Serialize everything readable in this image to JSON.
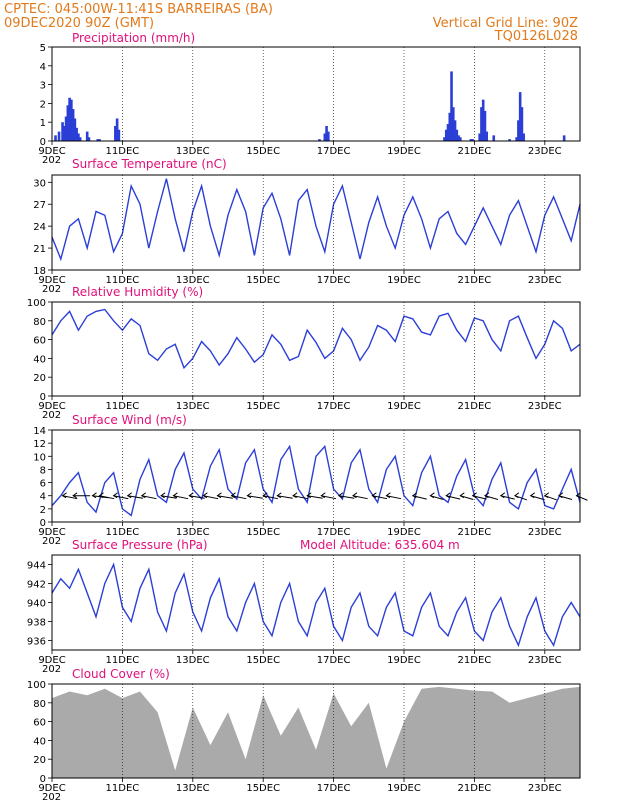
{
  "header": {
    "line1": "CPTEC:   045:00W-11:41S   BARREIRAS (BA)",
    "line2": "09DEC2020 90Z (GMT)",
    "grid_note": "Vertical Grid Line: 90Z",
    "model_code": "TQ0126L028"
  },
  "colors": {
    "header": "#e07a1c",
    "title": "#e0107a",
    "line": "#2b3fd6",
    "cloud": "#aaaaaa",
    "arrow": "#000000"
  },
  "x_ticks": [
    "9DEC",
    "11DEC",
    "13DEC",
    "15DEC",
    "17DEC",
    "19DEC",
    "21DEC",
    "23DEC"
  ],
  "x_sub": "202",
  "chart_data": [
    {
      "id": "precip",
      "type": "bar",
      "title": "Precipitation (mm/h)",
      "ylim": [
        0,
        5
      ],
      "yticks": [
        "0",
        "1",
        "2",
        "3",
        "4",
        "5"
      ],
      "x": [
        0.1,
        0.2,
        0.3,
        0.35,
        0.4,
        0.45,
        0.5,
        0.55,
        0.6,
        0.65,
        0.7,
        0.75,
        0.8,
        1.0,
        1.05,
        1.3,
        1.35,
        1.8,
        1.85,
        1.9,
        7.6,
        7.75,
        7.8,
        7.85,
        11.15,
        11.2,
        11.25,
        11.3,
        11.35,
        11.4,
        11.45,
        11.5,
        11.55,
        11.6,
        11.9,
        11.95,
        12.15,
        12.2,
        12.25,
        12.3,
        12.35,
        12.55,
        13.0,
        13.2,
        13.25,
        13.3,
        13.35,
        13.4,
        14.55
      ],
      "values": [
        0.3,
        0.5,
        1.0,
        0.8,
        1.3,
        1.9,
        2.3,
        2.2,
        1.7,
        1.2,
        0.7,
        0.4,
        0.2,
        0.5,
        0.2,
        0.1,
        0.1,
        0.8,
        1.2,
        0.6,
        0.1,
        0.4,
        0.8,
        0.5,
        0.2,
        0.6,
        0.9,
        1.5,
        3.7,
        1.8,
        1.1,
        0.6,
        0.3,
        0.2,
        0.1,
        0.1,
        0.4,
        1.8,
        2.2,
        1.6,
        0.5,
        0.3,
        0.1,
        0.2,
        1.1,
        2.6,
        1.8,
        0.4,
        0.3
      ]
    },
    {
      "id": "temp",
      "type": "line",
      "title": "Surface Temperature (nC)",
      "ylim": [
        18,
        31
      ],
      "yticks": [
        "18",
        "21",
        "24",
        "27",
        "30"
      ],
      "x": [
        0.0,
        0.25,
        0.5,
        0.75,
        1.0,
        1.25,
        1.5,
        1.75,
        2.0,
        2.25,
        2.5,
        2.75,
        3.0,
        3.25,
        3.5,
        3.75,
        4.0,
        4.25,
        4.5,
        4.75,
        5.0,
        5.25,
        5.5,
        5.75,
        6.0,
        6.25,
        6.5,
        6.75,
        7.0,
        7.25,
        7.5,
        7.75,
        8.0,
        8.25,
        8.5,
        8.75,
        9.0,
        9.25,
        9.5,
        9.75,
        10.0,
        10.25,
        10.5,
        10.75,
        11.0,
        11.25,
        11.5,
        11.75,
        12.0,
        12.25,
        12.5,
        12.75,
        13.0,
        13.25,
        13.5,
        13.75,
        14.0,
        14.25,
        14.5,
        14.75,
        15.0
      ],
      "values": [
        22.5,
        19.5,
        24.0,
        25.0,
        21.0,
        26.0,
        25.5,
        20.5,
        23.0,
        29.5,
        27.0,
        21.0,
        26.0,
        30.5,
        25.0,
        20.5,
        26.0,
        29.5,
        24.0,
        20.0,
        25.5,
        29.0,
        26.0,
        20.0,
        26.5,
        28.5,
        25.0,
        20.0,
        27.5,
        29.0,
        24.0,
        20.5,
        27.0,
        29.5,
        24.5,
        19.5,
        24.5,
        28.0,
        24.0,
        21.0,
        25.5,
        28.0,
        25.0,
        21.0,
        25.0,
        26.0,
        23.0,
        21.5,
        24.0,
        26.5,
        24.0,
        21.5,
        25.5,
        27.5,
        24.0,
        20.5,
        25.5,
        28.0,
        25.0,
        22.0,
        27.0
      ]
    },
    {
      "id": "humidity",
      "type": "line",
      "title": "Relative Humidity (%)",
      "ylim": [
        0,
        100
      ],
      "yticks": [
        "0",
        "20",
        "40",
        "60",
        "80",
        "100"
      ],
      "x": [
        0.0,
        0.25,
        0.5,
        0.75,
        1.0,
        1.25,
        1.5,
        1.75,
        2.0,
        2.25,
        2.5,
        2.75,
        3.0,
        3.25,
        3.5,
        3.75,
        4.0,
        4.25,
        4.5,
        4.75,
        5.0,
        5.25,
        5.5,
        5.75,
        6.0,
        6.25,
        6.5,
        6.75,
        7.0,
        7.25,
        7.5,
        7.75,
        8.0,
        8.25,
        8.5,
        8.75,
        9.0,
        9.25,
        9.5,
        9.75,
        10.0,
        10.25,
        10.5,
        10.75,
        11.0,
        11.25,
        11.5,
        11.75,
        12.0,
        12.25,
        12.5,
        12.75,
        13.0,
        13.25,
        13.5,
        13.75,
        14.0,
        14.25,
        14.5,
        14.75,
        15.0
      ],
      "values": [
        65,
        80,
        90,
        70,
        85,
        90,
        92,
        80,
        70,
        82,
        75,
        45,
        38,
        50,
        55,
        30,
        40,
        58,
        48,
        33,
        45,
        62,
        50,
        36,
        44,
        65,
        55,
        38,
        42,
        70,
        57,
        40,
        48,
        72,
        60,
        38,
        52,
        75,
        70,
        58,
        85,
        82,
        68,
        65,
        85,
        88,
        70,
        58,
        83,
        80,
        60,
        48,
        80,
        85,
        62,
        40,
        55,
        80,
        72,
        48,
        55
      ]
    },
    {
      "id": "wind",
      "type": "line",
      "title": "Surface Wind (m/s)",
      "ylim": [
        0,
        14
      ],
      "yticks": [
        "0",
        "2",
        "4",
        "6",
        "8",
        "10",
        "12",
        "14"
      ],
      "x": [
        0.0,
        0.25,
        0.5,
        0.75,
        1.0,
        1.25,
        1.5,
        1.75,
        2.0,
        2.25,
        2.5,
        2.75,
        3.0,
        3.25,
        3.5,
        3.75,
        4.0,
        4.25,
        4.5,
        4.75,
        5.0,
        5.25,
        5.5,
        5.75,
        6.0,
        6.25,
        6.5,
        6.75,
        7.0,
        7.25,
        7.5,
        7.75,
        8.0,
        8.25,
        8.5,
        8.75,
        9.0,
        9.25,
        9.5,
        9.75,
        10.0,
        10.25,
        10.5,
        10.75,
        11.0,
        11.25,
        11.5,
        11.75,
        12.0,
        12.25,
        12.5,
        12.75,
        13.0,
        13.25,
        13.5,
        13.75,
        14.0,
        14.25,
        14.5,
        14.75,
        15.0
      ],
      "values": [
        2.5,
        4.0,
        6.0,
        7.5,
        3.0,
        1.5,
        6.0,
        7.5,
        2.0,
        1.0,
        6.5,
        9.5,
        4.0,
        3.0,
        8.0,
        10.5,
        5.0,
        3.5,
        8.5,
        11.0,
        5.0,
        3.5,
        9.0,
        11.0,
        5.0,
        3.0,
        9.5,
        11.5,
        5.0,
        3.0,
        10.0,
        11.5,
        5.0,
        3.5,
        9.0,
        11.0,
        5.0,
        3.0,
        8.0,
        10.0,
        4.0,
        2.5,
        7.5,
        10.0,
        4.0,
        3.0,
        7.0,
        9.5,
        4.0,
        2.5,
        6.5,
        9.0,
        3.0,
        2.0,
        6.0,
        8.0,
        2.5,
        2.0,
        5.0,
        8.0,
        3.0
      ],
      "arrows_x": [
        0.3,
        0.6,
        1.15,
        1.35,
        1.75,
        2.15,
        2.55,
        3.1,
        3.45,
        3.9,
        4.3,
        4.7,
        5.1,
        5.55,
        6.0,
        6.4,
        6.85,
        7.25,
        7.65,
        8.15,
        8.55,
        9.1,
        9.5,
        10.25,
        10.75,
        11.2,
        11.6,
        11.95,
        12.3,
        12.75,
        13.15,
        13.6,
        14.0,
        14.4,
        14.9
      ],
      "arrows_dir_deg": [
        210,
        180,
        200,
        210,
        210,
        205,
        210,
        205,
        210,
        205,
        210,
        205,
        210,
        205,
        210,
        205,
        210,
        205,
        210,
        205,
        210,
        210,
        210,
        215,
        220,
        215,
        220,
        215,
        220,
        215,
        225,
        220,
        225,
        220,
        230
      ]
    },
    {
      "id": "pressure",
      "type": "line",
      "title": "Surface Pressure (hPa)",
      "extra_label": "Model Altitude: 635.604 m",
      "ylim": [
        935,
        945
      ],
      "yticks": [
        "936",
        "938",
        "940",
        "942",
        "944"
      ],
      "x": [
        0.0,
        0.25,
        0.5,
        0.75,
        1.0,
        1.25,
        1.5,
        1.75,
        2.0,
        2.25,
        2.5,
        2.75,
        3.0,
        3.25,
        3.5,
        3.75,
        4.0,
        4.25,
        4.5,
        4.75,
        5.0,
        5.25,
        5.5,
        5.75,
        6.0,
        6.25,
        6.5,
        6.75,
        7.0,
        7.25,
        7.5,
        7.75,
        8.0,
        8.25,
        8.5,
        8.75,
        9.0,
        9.25,
        9.5,
        9.75,
        10.0,
        10.25,
        10.5,
        10.75,
        11.0,
        11.25,
        11.5,
        11.75,
        12.0,
        12.25,
        12.5,
        12.75,
        13.0,
        13.25,
        13.5,
        13.75,
        14.0,
        14.25,
        14.5,
        14.75,
        15.0
      ],
      "values": [
        941.0,
        942.5,
        941.5,
        943.5,
        941.0,
        938.5,
        942.0,
        944.0,
        939.5,
        938.0,
        941.5,
        943.5,
        939.0,
        937.0,
        941.0,
        943.0,
        939.0,
        937.0,
        940.5,
        942.5,
        938.5,
        937.0,
        940.0,
        942.0,
        938.0,
        936.5,
        940.0,
        942.0,
        938.0,
        936.5,
        940.0,
        941.5,
        937.5,
        936.0,
        939.5,
        941.0,
        937.5,
        936.5,
        939.5,
        941.0,
        937.0,
        936.5,
        939.5,
        941.0,
        937.5,
        936.5,
        939.0,
        940.5,
        937.0,
        936.0,
        939.0,
        940.5,
        937.5,
        935.5,
        938.5,
        940.5,
        937.0,
        935.5,
        938.5,
        940.0,
        938.5
      ]
    },
    {
      "id": "cloud",
      "type": "area",
      "title": "Cloud Cover (%)",
      "ylim": [
        0,
        100
      ],
      "yticks": [
        "0",
        "20",
        "40",
        "60",
        "80",
        "100"
      ],
      "x": [
        0.0,
        0.5,
        1.0,
        1.5,
        2.0,
        2.5,
        3.0,
        3.5,
        4.0,
        4.5,
        5.0,
        5.5,
        6.0,
        6.5,
        7.0,
        7.5,
        8.0,
        8.5,
        9.0,
        9.5,
        10.0,
        10.5,
        11.0,
        11.5,
        12.0,
        12.5,
        13.0,
        13.5,
        14.0,
        14.5,
        15.0
      ],
      "values": [
        85,
        92,
        88,
        95,
        85,
        92,
        70,
        8,
        75,
        35,
        70,
        20,
        88,
        45,
        75,
        30,
        90,
        55,
        80,
        10,
        60,
        95,
        97,
        95,
        93,
        92,
        80,
        85,
        90,
        95,
        97
      ]
    }
  ]
}
